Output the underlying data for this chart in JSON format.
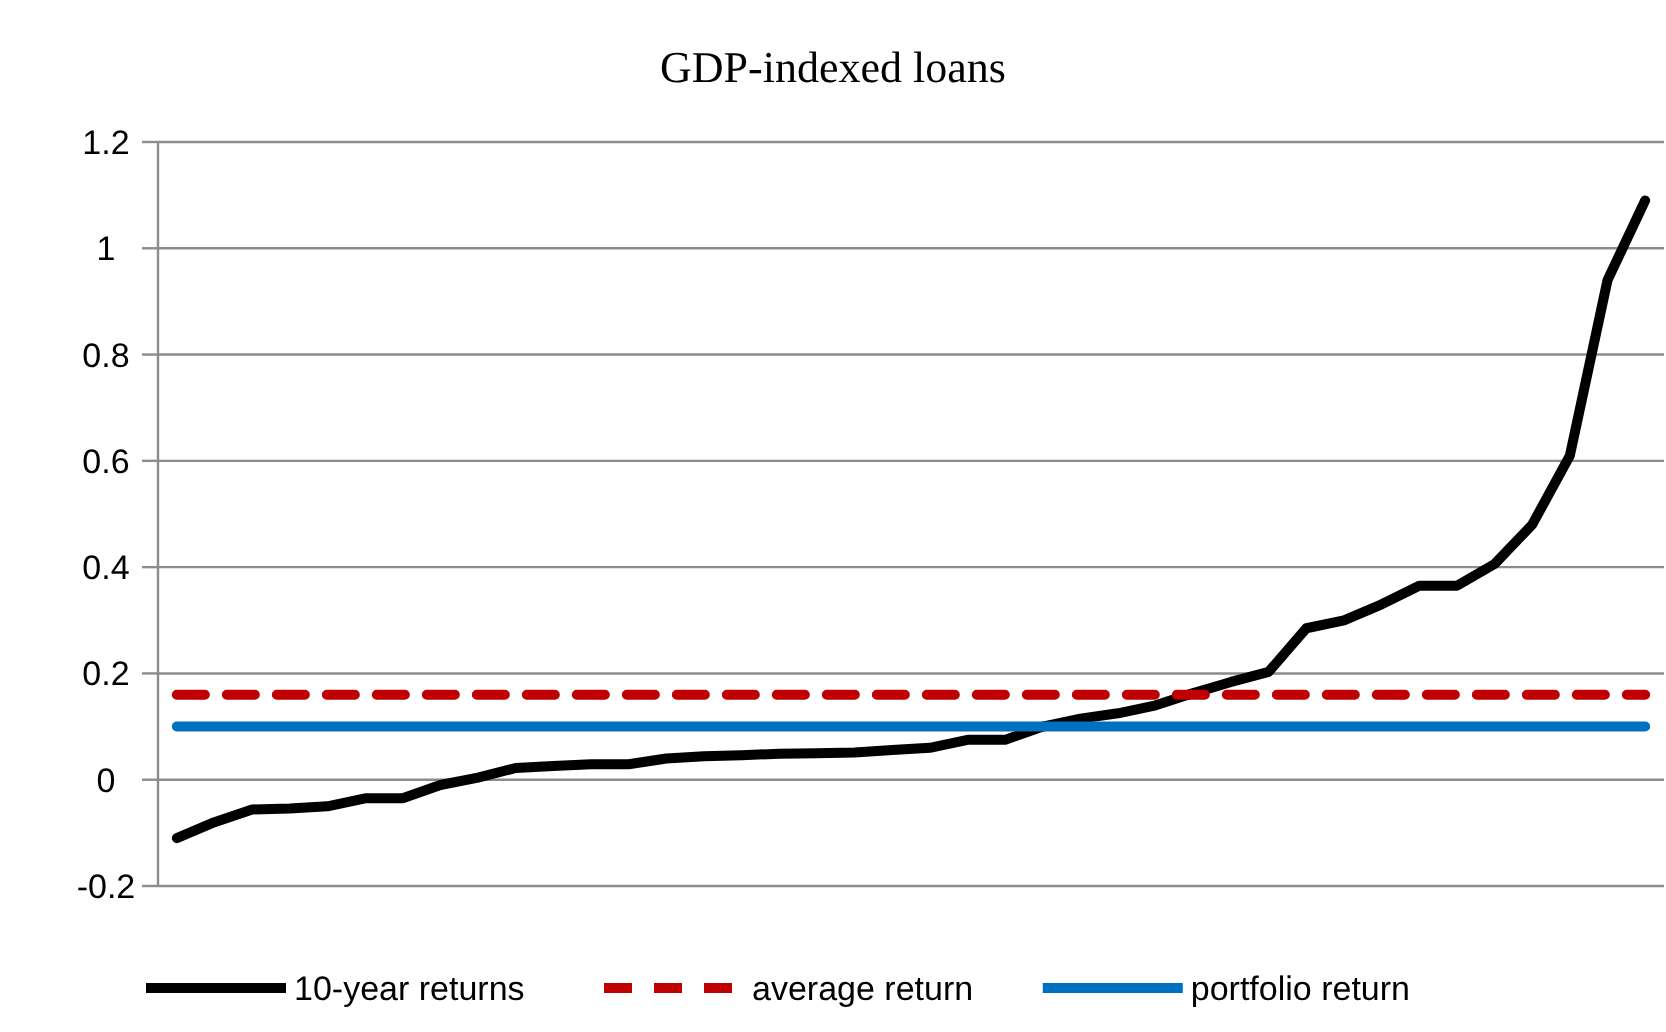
{
  "chart_data": {
    "type": "line",
    "title": "GDP-indexed loans",
    "categories": [
      null,
      null,
      null,
      null,
      null,
      null,
      null,
      null,
      null,
      null,
      null,
      null,
      null,
      null,
      null,
      null,
      null,
      null,
      null,
      null,
      null,
      null,
      null,
      null,
      null,
      null,
      null,
      null,
      null,
      null,
      null,
      null,
      null,
      null,
      null,
      null,
      null,
      null,
      null,
      null
    ],
    "series": [
      {
        "name": "10-year returns",
        "color": "#000000",
        "values": [
          -0.11,
          -0.08,
          -0.056,
          -0.054,
          -0.05,
          -0.035,
          -0.035,
          -0.01,
          0.004,
          0.022,
          0.026,
          0.029,
          0.029,
          0.04,
          0.044,
          0.046,
          0.049,
          0.05,
          0.051,
          0.056,
          0.06,
          0.075,
          0.075,
          0.1,
          0.115,
          0.125,
          0.14,
          0.163,
          0.184,
          0.203,
          0.285,
          0.3,
          0.33,
          0.365,
          0.365,
          0.406,
          0.48,
          0.61,
          0.94,
          1.09
        ]
      },
      {
        "name": "average return",
        "color": "#c00000",
        "line_style": "dashed",
        "values": [
          0.16,
          0.16,
          0.16,
          0.16,
          0.16,
          0.16,
          0.16,
          0.16,
          0.16,
          0.16,
          0.16,
          0.16,
          0.16,
          0.16,
          0.16,
          0.16,
          0.16,
          0.16,
          0.16,
          0.16,
          0.16,
          0.16,
          0.16,
          0.16,
          0.16,
          0.16,
          0.16,
          0.16,
          0.16,
          0.16,
          0.16,
          0.16,
          0.16,
          0.16,
          0.16,
          0.16,
          0.16,
          0.16,
          0.16,
          0.16
        ]
      },
      {
        "name": "portfolio return",
        "color": "#0070c0",
        "values": [
          0.1,
          0.1,
          0.1,
          0.1,
          0.1,
          0.1,
          0.1,
          0.1,
          0.1,
          0.1,
          0.1,
          0.1,
          0.1,
          0.1,
          0.1,
          0.1,
          0.1,
          0.1,
          0.1,
          0.1,
          0.1,
          0.1,
          0.1,
          0.1,
          0.1,
          0.1,
          0.1,
          0.1,
          0.1,
          0.1,
          0.1,
          0.1,
          0.1,
          0.1,
          0.1,
          0.1,
          0.1,
          0.1,
          0.1,
          0.1
        ]
      }
    ],
    "ylim": [
      -0.2,
      1.2
    ],
    "yticks": [
      -0.2,
      0,
      0.2,
      0.4,
      0.6,
      0.8,
      1,
      1.2
    ],
    "grid": "y",
    "legend": "bottom",
    "marker": "none",
    "line_style": "solid"
  }
}
